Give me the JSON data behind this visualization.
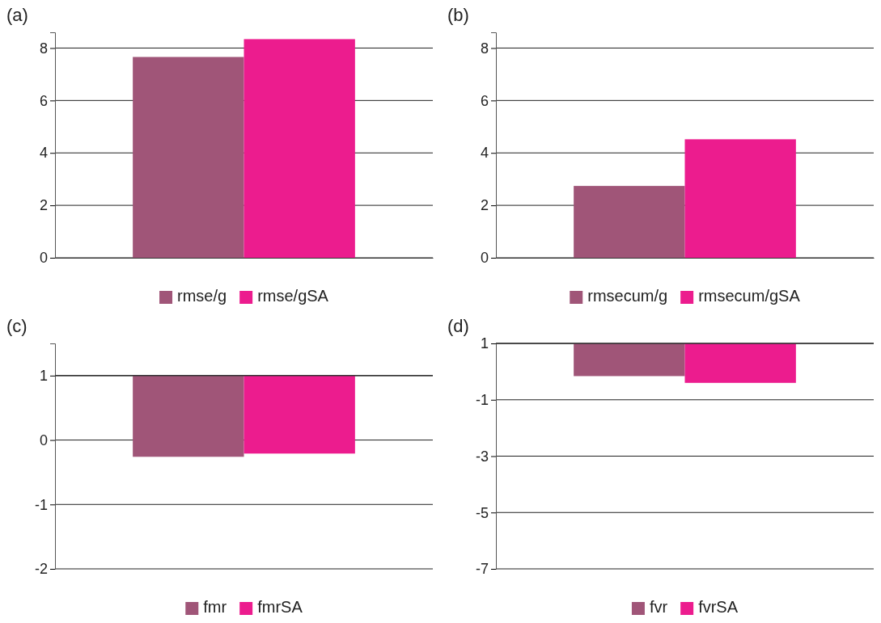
{
  "chart_data": [
    {
      "type": "bar",
      "title": "(a)",
      "categories": [
        null
      ],
      "series": [
        {
          "name": "rmse/g",
          "color": "#a05578",
          "values": [
            7.66
          ]
        },
        {
          "name": "rmse/gSA",
          "color": "#ec1c8e",
          "values": [
            8.34
          ]
        }
      ],
      "ylim": [
        0,
        8.6
      ],
      "yticks": [
        0,
        2,
        4,
        6,
        8
      ],
      "grid": "y",
      "legend": "bottom"
    },
    {
      "type": "bar",
      "title": "(b)",
      "categories": [
        null
      ],
      "series": [
        {
          "name": "rmsecum/g",
          "color": "#a05578",
          "values": [
            2.74
          ]
        },
        {
          "name": "rmsecum/gSA",
          "color": "#ec1c8e",
          "values": [
            4.52
          ]
        }
      ],
      "ylim": [
        0,
        8.6
      ],
      "yticks": [
        0,
        2,
        4,
        6,
        8
      ],
      "grid": "y",
      "legend": "bottom"
    },
    {
      "type": "bar",
      "title": "(c)",
      "categories": [
        null
      ],
      "series": [
        {
          "name": "fmr",
          "color": "#a05578",
          "values": [
            -1.26
          ],
          "base": [
            1
          ]
        },
        {
          "name": "fmrSA",
          "color": "#ec1c8e",
          "values": [
            -1.21
          ],
          "base": [
            1
          ]
        }
      ],
      "ref_lines": [
        {
          "axis": "y",
          "value": 1,
          "color": "#333333"
        }
      ],
      "ylim": [
        -2,
        1.5
      ],
      "yticks": [
        -2,
        -1,
        0,
        1
      ],
      "grid": "y",
      "legend": "bottom"
    },
    {
      "type": "bar",
      "title": "(d)",
      "categories": [
        null
      ],
      "series": [
        {
          "name": "fvr",
          "color": "#a05578",
          "values": [
            -1.16
          ],
          "base": [
            1
          ]
        },
        {
          "name": "fvrSA",
          "color": "#ec1c8e",
          "values": [
            -1.4
          ],
          "base": [
            1
          ]
        }
      ],
      "ref_lines": [
        {
          "axis": "y",
          "value": 1,
          "color": "#333333"
        }
      ],
      "ylim": [
        -7,
        1
      ],
      "yticks": [
        -7,
        -5,
        -3,
        -1,
        1
      ],
      "grid": "y",
      "legend": "bottom"
    }
  ]
}
